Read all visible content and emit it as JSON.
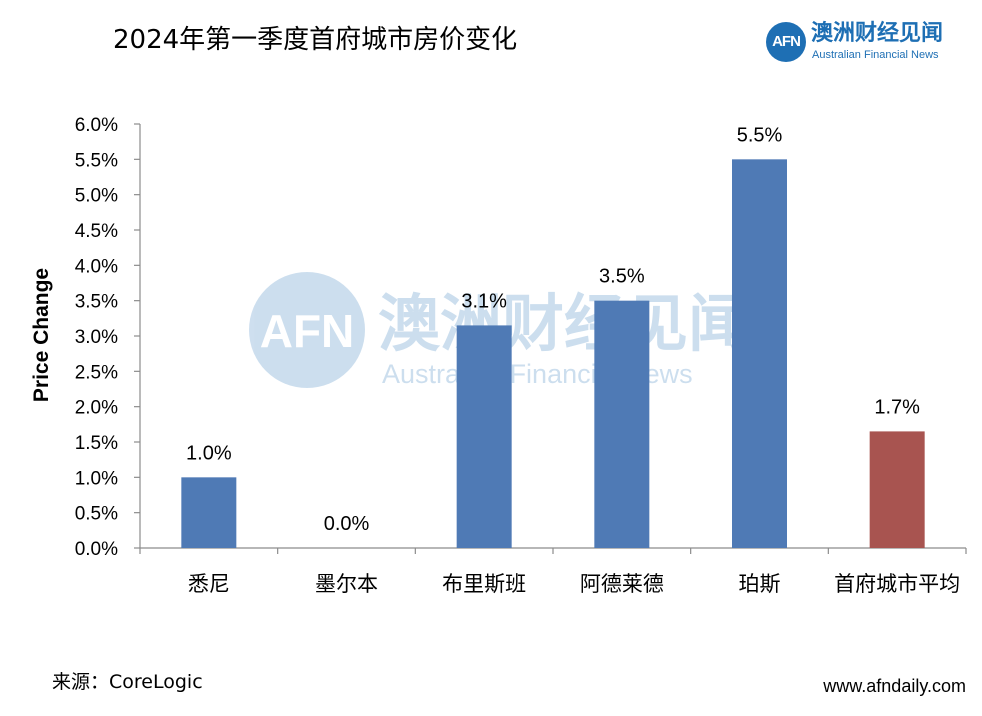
{
  "header": {
    "title": "2024年第一季度首府城市房价变化"
  },
  "logo": {
    "mark": "AFN",
    "name_cn": "澳洲财经见闻",
    "name_en": "Australian Financial News"
  },
  "watermark": {
    "mark": "AFN",
    "name_cn": "澳洲财经见闻",
    "name_en": "Australian Financial News"
  },
  "footer": {
    "source": "来源：CoreLogic",
    "site": "www.afndaily.com"
  },
  "colors": {
    "city_bar": "#4f7ab5",
    "average_bar": "#a85450",
    "brand": "#1e6fb4"
  },
  "chart_data": {
    "type": "bar",
    "title": "2024年第一季度首府城市房价变化",
    "ylabel": "Price Change",
    "xlabel": "",
    "ylim": [
      0,
      6
    ],
    "yticks": [
      "0.0%",
      "0.5%",
      "1.0%",
      "1.5%",
      "2.0%",
      "2.5%",
      "3.0%",
      "3.5%",
      "4.0%",
      "4.5%",
      "5.0%",
      "5.5%",
      "6.0%"
    ],
    "categories": [
      "悉尼",
      "墨尔本",
      "布里斯班",
      "阿德莱德",
      "珀斯",
      "首府城市平均"
    ],
    "values": [
      1.0,
      0.0,
      3.15,
      3.5,
      5.5,
      1.65
    ],
    "data_labels": [
      "1.0%",
      "0.0%",
      "3.1%",
      "3.5%",
      "5.5%",
      "1.7%"
    ],
    "highlight_category": "首府城市平均",
    "legend": "none",
    "grid": false
  }
}
